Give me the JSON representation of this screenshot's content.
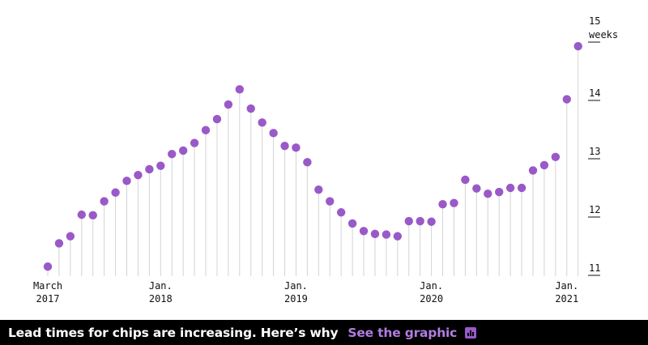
{
  "chart_data": {
    "type": "scatter",
    "style": "lollipop",
    "title": "",
    "xlabel": "",
    "ylabel": "",
    "y_unit": "weeks",
    "ylim": [
      11,
      15
    ],
    "x_ticks": [
      {
        "index": 0,
        "line1": "March",
        "line2": "2017"
      },
      {
        "index": 10,
        "line1": "Jan.",
        "line2": "2018"
      },
      {
        "index": 22,
        "line1": "Jan.",
        "line2": "2019"
      },
      {
        "index": 34,
        "line1": "Jan.",
        "line2": "2020"
      },
      {
        "index": 46,
        "line1": "Jan.",
        "line2": "2021"
      }
    ],
    "y_ticks": [
      {
        "value": 11,
        "label": "11"
      },
      {
        "value": 12,
        "label": "12"
      },
      {
        "value": 13,
        "label": "13"
      },
      {
        "value": 14,
        "label": "14"
      },
      {
        "value": 15,
        "label": "15",
        "unit": "weeks"
      }
    ],
    "series": [
      {
        "values": [
          11.15,
          11.55,
          11.67,
          12.04,
          12.03,
          12.27,
          12.42,
          12.62,
          12.72,
          12.82,
          12.88,
          13.08,
          13.14,
          13.27,
          13.49,
          13.68,
          13.93,
          14.19,
          13.86,
          13.62,
          13.44,
          13.22,
          13.19,
          12.94,
          12.47,
          12.27,
          12.08,
          11.89,
          11.76,
          11.71,
          11.7,
          11.67,
          11.93,
          11.93,
          11.92,
          12.22,
          12.24,
          12.64,
          12.49,
          12.4,
          12.43,
          12.5,
          12.5,
          12.8,
          12.89,
          13.03,
          14.02,
          14.93
        ],
        "color": "#9a59c8"
      }
    ],
    "grid": false
  },
  "banner": {
    "headline": "Lead times for chips are increasing. Here’s why",
    "link_text": "See the graphic",
    "icon": "chart-bars-icon",
    "background": "#000000",
    "link_color": "#b07ce0"
  }
}
